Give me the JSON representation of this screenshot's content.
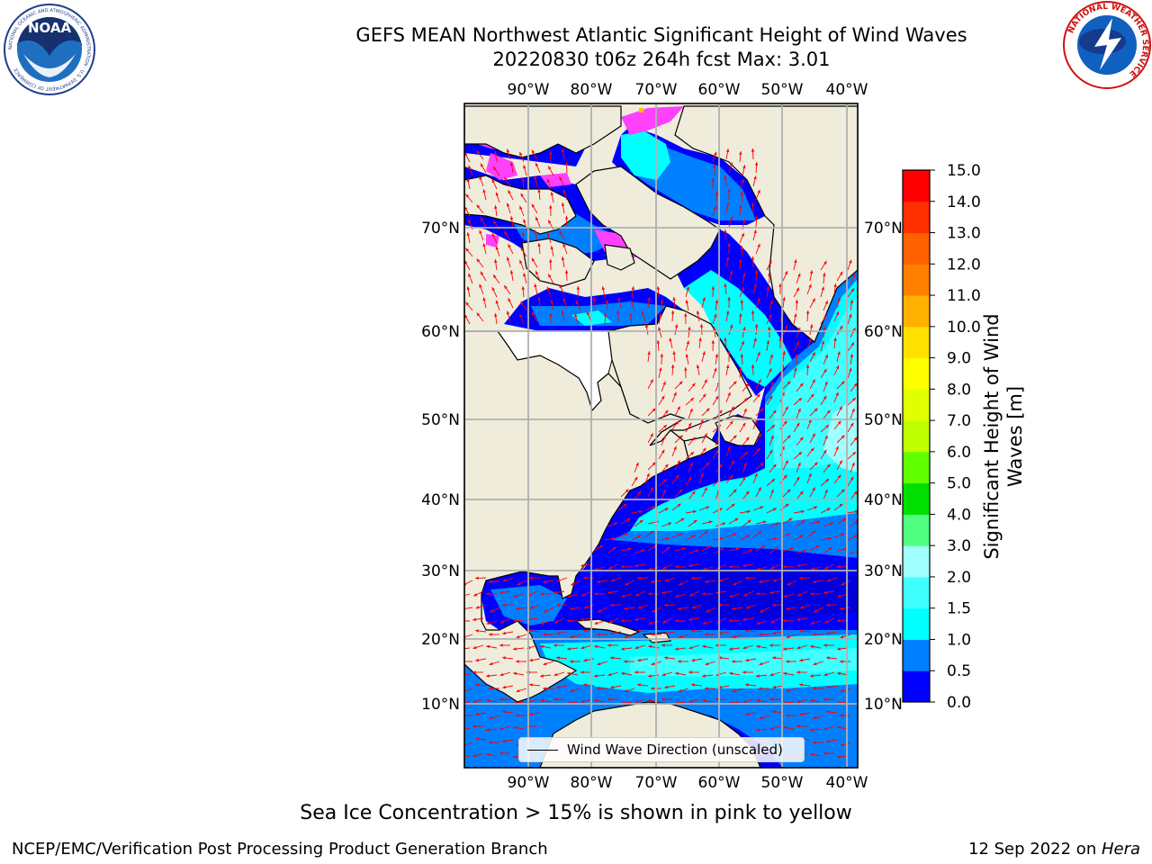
{
  "header": {
    "title_line1": "GEFS MEAN Northwest Atlantic Significant Height of Wind Waves",
    "title_line2": "20220830 t06z 264h fcst   Max: 3.01"
  },
  "logos": {
    "noaa_text": "NOAA",
    "noaa_ring": "NATIONAL OCEANIC AND ATMOSPHERIC ADMINISTRATION · U.S. DEPARTMENT OF COMMERCE",
    "nws_ring": "NATIONAL WEATHER SERVICE"
  },
  "map": {
    "lon_labels": [
      "90°W",
      "80°W",
      "70°W",
      "60°W",
      "50°W",
      "40°W"
    ],
    "lat_labels": [
      "70°N",
      "60°N",
      "50°N",
      "40°N",
      "30°N",
      "20°N",
      "10°N"
    ],
    "legend_label": "Wind Wave Direction (unscaled)",
    "colors": {
      "land": "#efecdc",
      "ocean_deep": "#0000ff",
      "arrow": "#ff0000",
      "grid": "#b0b0b0"
    }
  },
  "colorbar": {
    "title": "Significant Height of Wind Waves [m]",
    "tick_labels": [
      "0.0",
      "0.5",
      "1.0",
      "1.5",
      "2.0",
      "3.0",
      "4.0",
      "5.0",
      "6.0",
      "7.0",
      "8.0",
      "9.0",
      "10.0",
      "11.0",
      "12.0",
      "13.0",
      "14.0",
      "15.0"
    ],
    "colors": [
      "#0000ff",
      "#0080ff",
      "#00ffff",
      "#40ffff",
      "#a0ffff",
      "#50ff80",
      "#00e000",
      "#60ff00",
      "#c0ff00",
      "#e0ff00",
      "#ffff00",
      "#ffe000",
      "#ffb000",
      "#ff8000",
      "#ff6000",
      "#ff3000",
      "#ff0000"
    ]
  },
  "caption": "Sea Ice Concentration > 15% is shown in pink to yellow",
  "footer": {
    "left": "NCEP/EMC/Verification Post Processing Product Generation Branch",
    "right_date": "12 Sep 2022 on ",
    "right_machine": "Hera"
  }
}
